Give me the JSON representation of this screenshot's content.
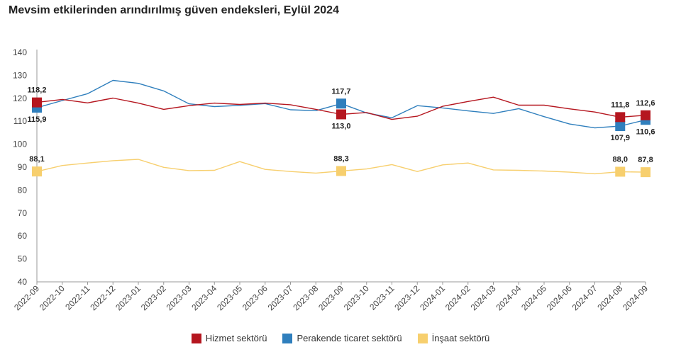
{
  "title": "Mevsim etkilerinden arındırılmış güven endeksleri, Eylül 2024",
  "colors": {
    "hizmet": "#b5161f",
    "perakende": "#2f7fbd",
    "insaat": "#f7cf6e",
    "axis": "#444444",
    "grid": "#dddddd"
  },
  "legend": [
    {
      "label": "Hizmet sektörü",
      "color": "#b5161f"
    },
    {
      "label": "Perakende ticaret sektörü",
      "color": "#2f7fbd"
    },
    {
      "label": "İnşaat sektörü",
      "color": "#f7cf6e"
    }
  ],
  "chart_data": {
    "type": "line",
    "title": "Mevsim etkilerinden arındırılmış güven endeksleri, Eylül 2024",
    "xlabel": "",
    "ylabel": "",
    "ylim": [
      40,
      140
    ],
    "yticks": [
      40,
      50,
      60,
      70,
      80,
      90,
      100,
      110,
      120,
      130,
      140
    ],
    "grid": false,
    "legend_position": "bottom",
    "categories": [
      "2022-09",
      "2022-10",
      "2022-11",
      "2022-12",
      "2023-01",
      "2023-02",
      "2023-03",
      "2023-04",
      "2023-05",
      "2023-06",
      "2023-07",
      "2023-08",
      "2023-09",
      "2023-10",
      "2023-11",
      "2023-12",
      "2024-01",
      "2024-02",
      "2024-03",
      "2024-04",
      "2024-05",
      "2024-06",
      "2024-07",
      "2024-08",
      "2024-09"
    ],
    "series": [
      {
        "name": "Hizmet sektörü",
        "color": "#b5161f",
        "values": [
          118.2,
          119.5,
          118.0,
          120.1,
          117.9,
          115.2,
          116.8,
          117.9,
          117.3,
          117.9,
          117.2,
          115.2,
          113.0,
          113.8,
          110.8,
          112.2,
          116.5,
          118.6,
          120.5,
          117.0,
          117.0,
          115.4,
          114.0,
          111.8,
          112.6
        ],
        "annotations": [
          {
            "index": 0,
            "label": "118,2",
            "position": "above"
          },
          {
            "index": 12,
            "label": "113,0",
            "position": "below"
          },
          {
            "index": 23,
            "label": "111,8",
            "position": "above"
          },
          {
            "index": 24,
            "label": "112,6",
            "position": "above"
          }
        ]
      },
      {
        "name": "Perakende ticaret sektörü",
        "color": "#2f7fbd",
        "values": [
          115.9,
          119.0,
          122.0,
          127.8,
          126.5,
          123.2,
          117.6,
          116.4,
          116.9,
          117.7,
          115.0,
          114.6,
          117.7,
          113.6,
          111.5,
          116.8,
          115.8,
          114.5,
          113.4,
          115.5,
          112.0,
          108.8,
          107.1,
          107.9,
          110.6
        ],
        "annotations": [
          {
            "index": 0,
            "label": "115,9",
            "position": "below"
          },
          {
            "index": 12,
            "label": "117,7",
            "position": "above"
          },
          {
            "index": 23,
            "label": "107,9",
            "position": "below"
          },
          {
            "index": 24,
            "label": "110,6",
            "position": "below"
          }
        ]
      },
      {
        "name": "İnşaat sektörü",
        "color": "#f7cf6e",
        "values": [
          88.1,
          90.7,
          91.8,
          92.8,
          93.4,
          89.9,
          88.5,
          88.6,
          92.4,
          89.0,
          88.1,
          87.4,
          88.3,
          89.2,
          91.1,
          88.1,
          91.0,
          91.8,
          88.8,
          88.6,
          88.3,
          87.8,
          87.1,
          88.0,
          87.8
        ],
        "annotations": [
          {
            "index": 0,
            "label": "88,1",
            "position": "above"
          },
          {
            "index": 12,
            "label": "88,3",
            "position": "above"
          },
          {
            "index": 23,
            "label": "88,0",
            "position": "above"
          },
          {
            "index": 24,
            "label": "87,8",
            "position": "above"
          }
        ]
      }
    ]
  }
}
